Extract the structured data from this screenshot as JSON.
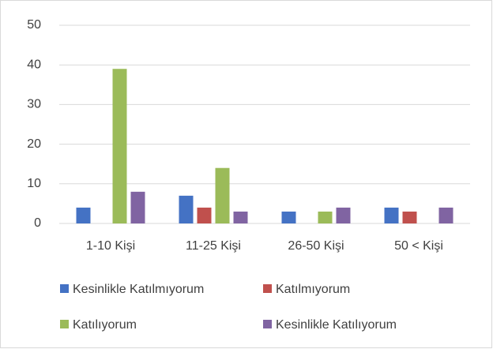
{
  "chart_data": {
    "type": "bar",
    "categories": [
      "1-10 Kişi",
      "11-25 Kişi",
      "26-50 Kişi",
      "50 < Kişi"
    ],
    "series": [
      {
        "name": "Kesinlikle Katılmıyorum",
        "color": "#4472c4",
        "values": [
          4,
          7,
          3,
          4
        ]
      },
      {
        "name": "Katılmıyorum",
        "color": "#c0504d",
        "values": [
          0,
          4,
          0,
          3
        ]
      },
      {
        "name": "Katılıyorum",
        "color": "#9bbb59",
        "values": [
          39,
          14,
          3,
          0
        ]
      },
      {
        "name": "Kesinlikle Katılıyorum",
        "color": "#8064a2",
        "values": [
          8,
          3,
          4,
          4
        ]
      }
    ],
    "ylim": [
      0,
      50
    ],
    "yticks": [
      0,
      10,
      20,
      30,
      40,
      50
    ],
    "grid": true,
    "legend": "bottom"
  }
}
